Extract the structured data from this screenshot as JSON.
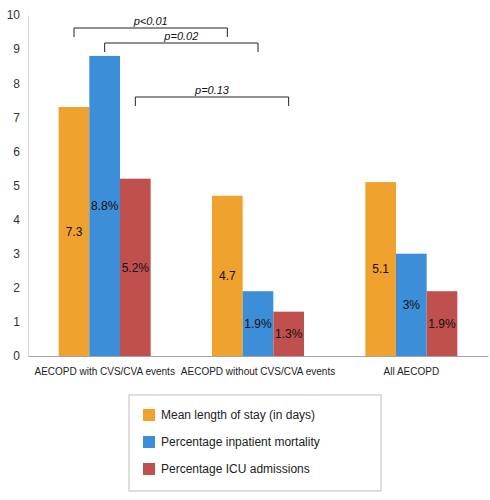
{
  "chart_data": {
    "type": "bar",
    "categories": [
      "AECOPD with CVS/CVA events",
      "AECOPD without CVS/CVA events",
      "All AECOPD"
    ],
    "series": [
      {
        "name": "Mean length of stay (in days)",
        "color": "#f0a22e",
        "values": [
          7.3,
          4.7,
          5.1
        ]
      },
      {
        "name": "Percentage inpatient mortality",
        "color": "#3d8ed8",
        "values": [
          8.8,
          1.9,
          3
        ],
        "value_labels": [
          "8.8%",
          "1.9%",
          "3%"
        ]
      },
      {
        "name": "Percentage ICU admissions",
        "color": "#c0504d",
        "values": [
          5.2,
          1.3,
          1.9
        ],
        "value_labels": [
          "5.2%",
          "1.3%",
          "1.9%"
        ]
      }
    ],
    "ylim": [
      0,
      10
    ],
    "yticks": [
      0,
      1,
      2,
      3,
      4,
      5,
      6,
      7,
      8,
      9,
      10
    ],
    "grid": false,
    "legend": "bottom",
    "data_labels": true,
    "annotations": [
      "p<0.01",
      "p=0.02",
      "p=0.13"
    ]
  }
}
